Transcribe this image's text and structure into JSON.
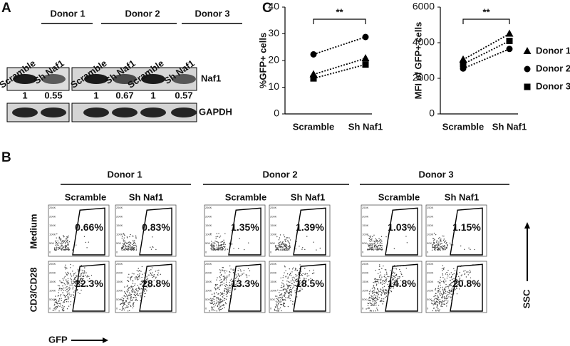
{
  "panel_labels": [
    "A",
    "B",
    "C"
  ],
  "blot": {
    "donors": [
      "Donor 1",
      "Donor 2",
      "Donor 3"
    ],
    "lanes": [
      "Scramble",
      "Sh Naf1",
      "Scramble",
      "Sh Naf1",
      "Scramble",
      "Sh Naf1"
    ],
    "proteins": [
      "Naf1",
      "GAPDH"
    ],
    "ratios": [
      1,
      0.55,
      1,
      0.67,
      1,
      0.57
    ]
  },
  "flow": {
    "donors": [
      "Donor 1",
      "Donor 2",
      "Donor 3"
    ],
    "columns": [
      "Scramble",
      "Sh Naf1"
    ],
    "rows": [
      "Medium",
      "CD3/CD28"
    ],
    "percentages": [
      [
        "0.66%",
        "0.83%",
        "1.35%",
        "1.39%",
        "1.03%",
        "1.15%"
      ],
      [
        "22.3%",
        "28.8%",
        "13.3%",
        "18.5%",
        "14.8%",
        "20.8%"
      ]
    ],
    "x_axis_label": "GFP",
    "y_axis_label": "SSC",
    "axis_ticks": [
      "250K",
      "200K",
      "150K",
      "100K",
      "50K",
      "0"
    ]
  },
  "chart_data": [
    {
      "type": "line",
      "y_label": "%GFP+ cells",
      "annotation": "**",
      "categories": [
        "Scramble",
        "Sh Naf1"
      ],
      "series": [
        {
          "marker": "triangle",
          "color": "#000000",
          "values": [
            14.8,
            20.8
          ]
        },
        {
          "marker": "circle",
          "color": "#000000",
          "values": [
            22.3,
            28.8
          ]
        },
        {
          "marker": "square",
          "color": "#000000",
          "values": [
            13.3,
            18.5
          ]
        }
      ],
      "ylim": [
        0,
        40
      ],
      "yticks": [
        0,
        10,
        20,
        30,
        40
      ]
    },
    {
      "type": "line",
      "y_label": "MFI of GFP+ cells",
      "annotation": "**",
      "legend": "right",
      "categories": [
        "Scramble",
        "Sh Naf1"
      ],
      "series": [
        {
          "name": "Donor 1",
          "marker": "triangle",
          "color": "#000000",
          "values": [
            3050,
            4500
          ]
        },
        {
          "name": "Donor 2",
          "marker": "circle",
          "color": "#000000",
          "values": [
            2550,
            3650
          ]
        },
        {
          "name": "Donor 3",
          "marker": "square",
          "color": "#000000",
          "values": [
            2800,
            4100
          ]
        }
      ],
      "ylim": [
        0,
        6000
      ],
      "yticks": [
        0,
        2000,
        4000,
        6000
      ]
    }
  ]
}
